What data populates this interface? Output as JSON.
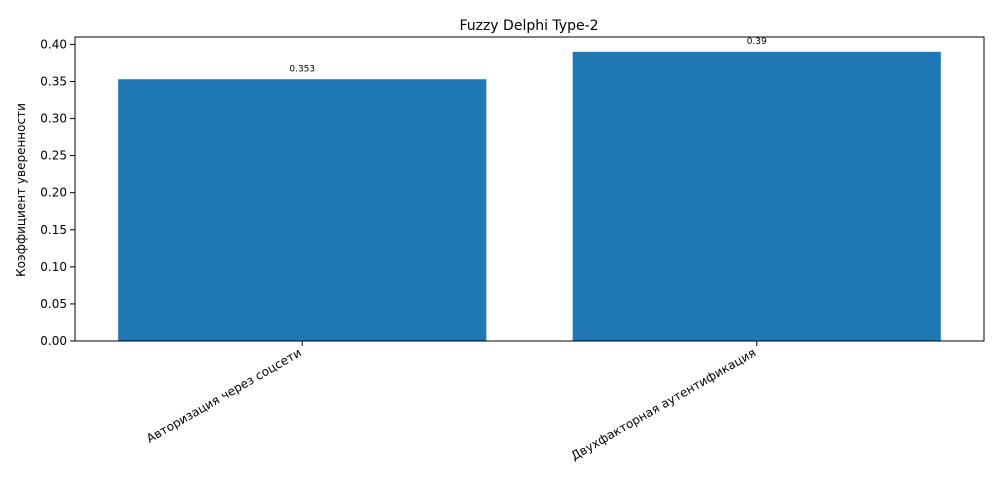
{
  "chart_data": {
    "type": "bar",
    "title": "Fuzzy Delphi Type-2",
    "xlabel": "",
    "ylabel": "Коэффициент уверенности",
    "categories": [
      "Авторизация через соцсети",
      "Двухфакторная аутентификация"
    ],
    "values": [
      0.353,
      0.39
    ],
    "value_labels": [
      "0.353",
      "0.39"
    ],
    "ylim": [
      0,
      0.41
    ],
    "yticks": [
      0.0,
      0.05,
      0.1,
      0.15,
      0.2,
      0.25,
      0.3,
      0.35,
      0.4
    ],
    "ytick_labels": [
      "0.00",
      "0.05",
      "0.10",
      "0.15",
      "0.20",
      "0.25",
      "0.30",
      "0.35",
      "0.40"
    ],
    "bar_color": "#1f77b4",
    "grid": false,
    "legend": "none"
  }
}
